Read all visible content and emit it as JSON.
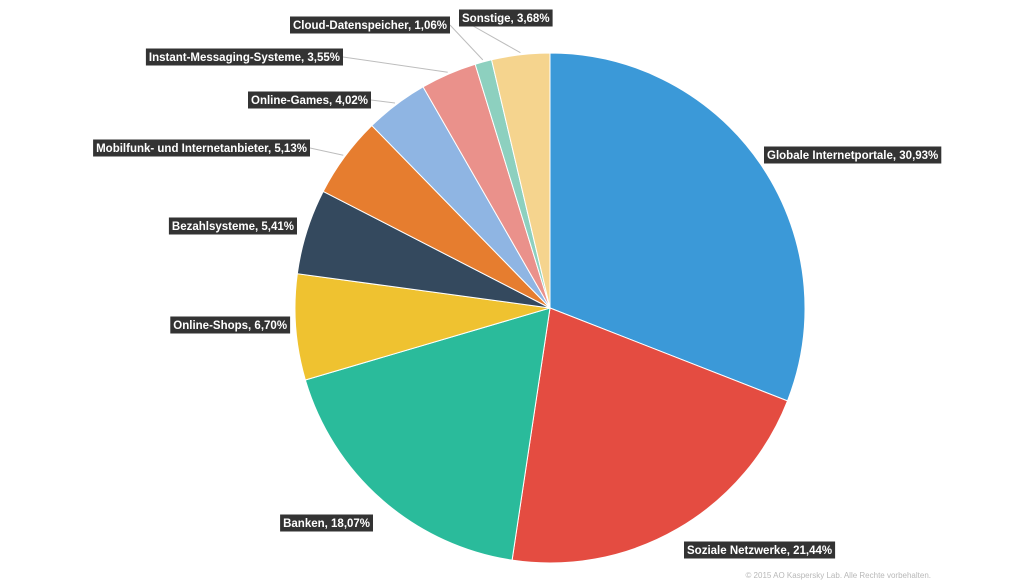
{
  "chart_data": {
    "type": "pie",
    "title": "",
    "start_angle_deg": 0,
    "direction": "clockwise",
    "slices": [
      {
        "label": "Globale Internetportale, 30,93%",
        "value": 30.93,
        "color": "#3b99d8"
      },
      {
        "label": "Soziale Netzwerke, 21,44%",
        "value": 21.44,
        "color": "#e44c41"
      },
      {
        "label": "Banken, 18,07%",
        "value": 18.07,
        "color": "#2abb9b"
      },
      {
        "label": "Online-Shops, 6,70%",
        "value": 6.7,
        "color": "#efc230"
      },
      {
        "label": "Bezahlsysteme, 5,41%",
        "value": 5.41,
        "color": "#34495e"
      },
      {
        "label": "Mobilfunk- und Internetanbieter, 5,13%",
        "value": 5.13,
        "color": "#e67d2f"
      },
      {
        "label": "Online-Games, 4,02%",
        "value": 4.02,
        "color": "#8fb5e3"
      },
      {
        "label": "Instant-Messaging-Systeme, 3,55%",
        "value": 3.55,
        "color": "#ea918b"
      },
      {
        "label": "Cloud-Datenspeicher, 1,06%",
        "value": 1.06,
        "color": "#8dd0bf"
      },
      {
        "label": "Sonstige, 3,68%",
        "value": 3.68,
        "color": "#f5d48e"
      }
    ]
  },
  "footer": {
    "copyright": "© 2015 AO Kaspersky Lab. Alle Rechte vorbehalten."
  }
}
